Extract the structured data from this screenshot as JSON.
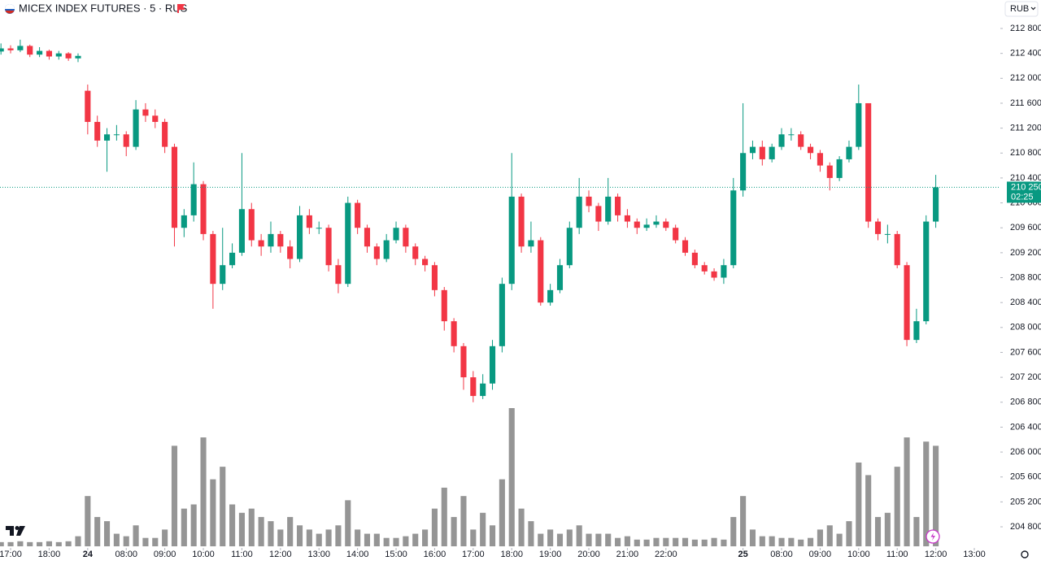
{
  "chart_data": {
    "type": "candlestick",
    "title": "MICEX INDEX FUTURES · 5 · RUS",
    "currency": "RUB",
    "up_color": "#089981",
    "down_color": "#f23645",
    "volume_color": "#8a8a8a",
    "x": [
      0,
      1,
      2,
      3,
      4,
      5,
      6,
      7,
      8,
      9,
      10,
      11,
      12,
      13,
      14,
      15,
      16,
      17,
      18,
      19,
      20,
      21,
      22,
      23,
      24,
      25,
      26,
      27,
      28,
      29,
      30,
      31,
      32,
      33,
      34,
      35,
      36,
      37,
      38,
      39,
      40,
      41,
      42,
      43,
      44,
      45,
      46,
      47,
      48,
      49,
      50,
      51,
      52,
      53,
      54,
      55,
      56,
      57,
      58,
      59,
      60,
      61,
      62,
      63,
      64,
      65,
      66,
      67,
      68,
      69,
      70,
      71,
      72,
      73,
      74,
      75,
      76,
      77,
      78,
      79,
      80,
      81,
      82,
      83,
      84,
      85,
      86,
      87,
      88,
      89,
      90,
      91,
      92,
      93,
      94,
      95,
      96,
      97
    ],
    "open": [
      212430,
      212480,
      212450,
      212520,
      212380,
      212440,
      212350,
      212400,
      212320,
      211800,
      211300,
      211000,
      211100,
      211100,
      210900,
      211500,
      211400,
      211300,
      210900,
      209600,
      209800,
      210300,
      209500,
      208700,
      209000,
      209200,
      209900,
      209400,
      209300,
      209500,
      209300,
      209100,
      209800,
      209600,
      209600,
      209000,
      208700,
      210000,
      209600,
      209300,
      209100,
      209400,
      209600,
      209300,
      209100,
      209000,
      208600,
      208100,
      207700,
      207200,
      206900,
      207100,
      207700,
      208700,
      210100,
      209300,
      209400,
      208400,
      208600,
      209000,
      209600,
      210100,
      209950,
      209700,
      210100,
      209800,
      209700,
      209600,
      209650,
      209700,
      209600,
      209400,
      209200,
      209000,
      208900,
      208800,
      209000,
      210200,
      210800,
      210900,
      210700,
      210900,
      211100,
      211100,
      210900,
      210800,
      210600,
      210400,
      210700,
      210900,
      211600,
      209700,
      209500,
      209500,
      209000,
      207800,
      208100,
      209700
    ],
    "high": [
      212560,
      212530,
      212620,
      212540,
      212500,
      212460,
      212440,
      212420,
      212400,
      211900,
      211400,
      211200,
      211250,
      211150,
      211650,
      211600,
      211500,
      211350,
      210950,
      209900,
      210650,
      210350,
      209550,
      209600,
      209350,
      210800,
      210000,
      209500,
      209700,
      209550,
      209400,
      209950,
      209900,
      209700,
      209650,
      209100,
      210100,
      210050,
      209650,
      209350,
      209500,
      209700,
      209650,
      209350,
      209150,
      209050,
      208650,
      208150,
      207750,
      207300,
      207250,
      207800,
      208800,
      210800,
      210150,
      209700,
      209450,
      208700,
      209100,
      209700,
      210400,
      210200,
      210000,
      210400,
      210150,
      209900,
      209750,
      209750,
      209800,
      209750,
      209650,
      209450,
      209250,
      209050,
      208950,
      209100,
      210400,
      211600,
      211000,
      211000,
      210950,
      211200,
      211200,
      211150,
      210950,
      210850,
      210650,
      210750,
      211000,
      211900,
      211600,
      209750,
      209650,
      209550,
      209050,
      208300,
      209800,
      210450
    ],
    "low": [
      212380,
      212400,
      212420,
      212340,
      212340,
      212300,
      212300,
      212280,
      212260,
      211100,
      210900,
      210500,
      211000,
      210750,
      210850,
      211300,
      211200,
      210800,
      209300,
      209450,
      209700,
      209400,
      208300,
      208600,
      208950,
      209150,
      209300,
      209150,
      209200,
      209200,
      208950,
      209050,
      209500,
      209500,
      208900,
      208550,
      208650,
      209500,
      209200,
      209000,
      209050,
      209350,
      209200,
      209000,
      208900,
      208500,
      207950,
      207600,
      207000,
      206800,
      206850,
      207000,
      207600,
      208600,
      209200,
      209200,
      208350,
      208350,
      208550,
      208950,
      209500,
      209850,
      209550,
      209650,
      209700,
      209600,
      209500,
      209550,
      209600,
      209550,
      209350,
      209150,
      208950,
      208850,
      208750,
      208700,
      208950,
      210100,
      210700,
      210600,
      210650,
      210850,
      211000,
      210850,
      210700,
      210500,
      210200,
      210350,
      210650,
      210850,
      209600,
      209400,
      209350,
      208950,
      207700,
      207750,
      208050,
      209600
    ],
    "close": [
      212480,
      212450,
      212520,
      212380,
      212440,
      212350,
      212400,
      212320,
      212360,
      211300,
      211000,
      211100,
      211100,
      210900,
      211500,
      211400,
      211300,
      210900,
      209600,
      209800,
      210300,
      209500,
      208700,
      209000,
      209200,
      209900,
      209400,
      209300,
      209500,
      209300,
      209100,
      209800,
      209600,
      209600,
      209000,
      208700,
      210000,
      209600,
      209300,
      209100,
      209400,
      209600,
      209300,
      209100,
      209000,
      208600,
      208100,
      207700,
      207200,
      206900,
      207100,
      207700,
      208700,
      210100,
      209300,
      209400,
      208400,
      208600,
      209000,
      209600,
      210100,
      209950,
      209700,
      210100,
      209800,
      209700,
      209600,
      209650,
      209700,
      209600,
      209400,
      209200,
      209000,
      208900,
      208800,
      209000,
      210200,
      210800,
      210900,
      210700,
      210900,
      211100,
      211100,
      210900,
      210800,
      210600,
      210400,
      210700,
      210900,
      211600,
      209700,
      209500,
      209500,
      209000,
      207800,
      208100,
      209700,
      210250
    ],
    "volume": [
      5,
      5,
      6,
      5,
      5,
      6,
      5,
      6,
      12,
      60,
      35,
      30,
      15,
      12,
      25,
      10,
      10,
      20,
      120,
      45,
      50,
      130,
      80,
      95,
      50,
      40,
      45,
      35,
      30,
      20,
      35,
      25,
      20,
      15,
      20,
      25,
      55,
      20,
      15,
      15,
      10,
      10,
      12,
      15,
      20,
      45,
      70,
      35,
      60,
      20,
      40,
      25,
      80,
      165,
      45,
      30,
      15,
      20,
      15,
      20,
      25,
      15,
      15,
      15,
      10,
      12,
      8,
      8,
      10,
      10,
      10,
      10,
      8,
      8,
      10,
      8,
      35,
      60,
      20,
      12,
      12,
      10,
      10,
      8,
      10,
      20,
      25,
      15,
      30,
      100,
      85,
      35,
      40,
      95,
      130,
      35,
      125,
      120
    ],
    "xlim": [
      -0.1,
      103.7
    ],
    "xticks": [
      {
        "value": 1,
        "label": "17:00"
      },
      {
        "value": 5,
        "label": "18:00"
      },
      {
        "value": 9,
        "label": "24"
      },
      {
        "value": 13,
        "label": "08:00"
      },
      {
        "value": 17,
        "label": "09:00"
      },
      {
        "value": 21,
        "label": "10:00"
      },
      {
        "value": 25,
        "label": "11:00"
      },
      {
        "value": 29,
        "label": "12:00"
      },
      {
        "value": 33,
        "label": "13:00"
      },
      {
        "value": 37,
        "label": "14:00"
      },
      {
        "value": 41,
        "label": "15:00"
      },
      {
        "value": 45,
        "label": "16:00"
      },
      {
        "value": 49,
        "label": "17:00"
      },
      {
        "value": 53,
        "label": "18:00"
      },
      {
        "value": 57,
        "label": "19:00"
      },
      {
        "value": 61,
        "label": "20:00"
      },
      {
        "value": 65,
        "label": "21:00"
      },
      {
        "value": 69,
        "label": "22:00"
      },
      {
        "value": 77,
        "label": "25"
      },
      {
        "value": 81,
        "label": "08:00"
      },
      {
        "value": 85,
        "label": "09:00"
      },
      {
        "value": 89,
        "label": "10:00"
      },
      {
        "value": 93,
        "label": "11:00"
      },
      {
        "value": 97,
        "label": "12:00"
      },
      {
        "value": 101,
        "label": "13:00"
      }
    ],
    "ylim": [
      204487,
      213257
    ],
    "yticks": [
      {
        "value": 212800,
        "label": "212 800"
      },
      {
        "value": 212400,
        "label": "212 400"
      },
      {
        "value": 212000,
        "label": "212 000"
      },
      {
        "value": 211600,
        "label": "211 600"
      },
      {
        "value": 211200,
        "label": "211 200"
      },
      {
        "value": 210800,
        "label": "210 800"
      },
      {
        "value": 210400,
        "label": "210 400"
      },
      {
        "value": 210000,
        "label": "210 000"
      },
      {
        "value": 209600,
        "label": "209 600"
      },
      {
        "value": 209200,
        "label": "209 200"
      },
      {
        "value": 208800,
        "label": "208 800"
      },
      {
        "value": 208400,
        "label": "208 400"
      },
      {
        "value": 208000,
        "label": "208 000"
      },
      {
        "value": 207600,
        "label": "207 600"
      },
      {
        "value": 207200,
        "label": "207 200"
      },
      {
        "value": 206800,
        "label": "206 800"
      },
      {
        "value": 206400,
        "label": "206 400"
      },
      {
        "value": 206000,
        "label": "206 000"
      },
      {
        "value": 205600,
        "label": "205 600"
      },
      {
        "value": 205200,
        "label": "205 200"
      },
      {
        "value": 204800,
        "label": "204 800"
      }
    ],
    "last_price": {
      "value": 210250,
      "label": "210 250"
    },
    "countdown": "02:25"
  }
}
